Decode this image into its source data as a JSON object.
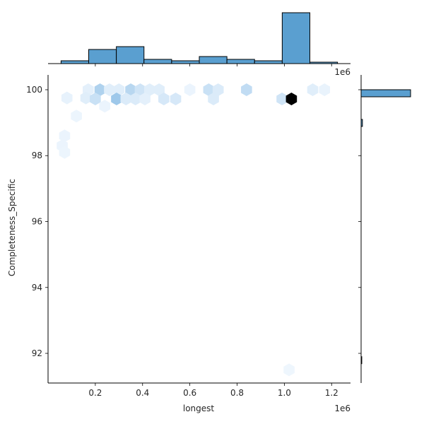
{
  "chart_data": {
    "type": "hexbin-joint",
    "xlabel": "longest",
    "ylabel": "Completeness_Specific",
    "x_offset_label": "1e6",
    "xlim": [
      0.0,
      1.28
    ],
    "ylim": [
      91.1,
      100.45
    ],
    "x_ticks": [
      0.2,
      0.4,
      0.6,
      0.8,
      1.0,
      1.2
    ],
    "x_tick_labels": [
      "0.2",
      "0.4",
      "0.6",
      "0.8",
      "1.0",
      "1.2"
    ],
    "y_ticks": [
      92,
      94,
      96,
      98,
      100
    ],
    "y_tick_labels": [
      "92",
      "94",
      "96",
      "98",
      "100"
    ],
    "colors": {
      "hist": "#5a9fd0",
      "edge": "#000000",
      "hex_max": "#000000"
    },
    "hexbins": [
      {
        "x": 0.22,
        "y": 100.0,
        "d": 0.4
      },
      {
        "x": 0.26,
        "y": 100.0,
        "d": 0.12
      },
      {
        "x": 0.3,
        "y": 100.0,
        "d": 0.12
      },
      {
        "x": 0.35,
        "y": 100.0,
        "d": 0.35
      },
      {
        "x": 0.39,
        "y": 100.0,
        "d": 0.22
      },
      {
        "x": 0.43,
        "y": 100.0,
        "d": 0.12
      },
      {
        "x": 0.47,
        "y": 100.0,
        "d": 0.12
      },
      {
        "x": 0.17,
        "y": 100.0,
        "d": 0.1
      },
      {
        "x": 0.68,
        "y": 100.0,
        "d": 0.25
      },
      {
        "x": 0.72,
        "y": 100.0,
        "d": 0.15
      },
      {
        "x": 0.84,
        "y": 100.0,
        "d": 0.3
      },
      {
        "x": 1.12,
        "y": 100.0,
        "d": 0.12
      },
      {
        "x": 1.17,
        "y": 100.0,
        "d": 0.07
      },
      {
        "x": 0.6,
        "y": 100.0,
        "d": 0.06
      },
      {
        "x": 0.08,
        "y": 99.75,
        "d": 0.08
      },
      {
        "x": 0.16,
        "y": 99.75,
        "d": 0.12
      },
      {
        "x": 0.2,
        "y": 99.72,
        "d": 0.25
      },
      {
        "x": 0.29,
        "y": 99.72,
        "d": 0.5
      },
      {
        "x": 0.33,
        "y": 99.72,
        "d": 0.15
      },
      {
        "x": 0.37,
        "y": 99.72,
        "d": 0.15
      },
      {
        "x": 0.41,
        "y": 99.72,
        "d": 0.1
      },
      {
        "x": 0.49,
        "y": 99.72,
        "d": 0.18
      },
      {
        "x": 0.54,
        "y": 99.72,
        "d": 0.18
      },
      {
        "x": 0.7,
        "y": 99.72,
        "d": 0.15
      },
      {
        "x": 0.99,
        "y": 99.72,
        "d": 0.22
      },
      {
        "x": 1.03,
        "y": 99.72,
        "d": 1.0
      },
      {
        "x": 0.24,
        "y": 99.5,
        "d": 0.06
      },
      {
        "x": 0.07,
        "y": 98.6,
        "d": 0.06
      },
      {
        "x": 0.06,
        "y": 98.3,
        "d": 0.06
      },
      {
        "x": 0.07,
        "y": 98.1,
        "d": 0.05
      },
      {
        "x": 0.12,
        "y": 99.2,
        "d": 0.05
      },
      {
        "x": 1.02,
        "y": 91.5,
        "d": 0.04
      }
    ],
    "x_hist": {
      "bin_edges": [
        0.055,
        0.172,
        0.289,
        0.406,
        0.523,
        0.64,
        0.757,
        0.874,
        0.991,
        1.108,
        1.225
      ],
      "counts": [
        2,
        10,
        12,
        3,
        2,
        5,
        3,
        2,
        36,
        1
      ]
    },
    "y_hist": {
      "bin_edges": [
        91.0,
        91.9,
        92.8,
        93.7,
        94.6,
        95.5,
        96.4,
        97.3,
        98.2,
        99.1,
        100.0
      ],
      "counts": [
        1,
        0,
        0,
        0,
        0,
        0,
        0,
        0,
        2,
        75
      ]
    }
  }
}
